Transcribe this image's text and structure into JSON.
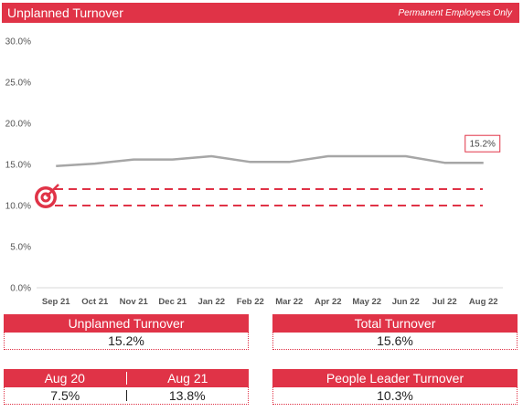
{
  "header": {
    "title": "Unplanned Turnover",
    "subtitle": "Permanent Employees Only"
  },
  "chart_data": {
    "type": "line",
    "title": "Unplanned Turnover",
    "categories": [
      "Sep 21",
      "Oct 21",
      "Nov 21",
      "Dec 21",
      "Jan 22",
      "Feb 22",
      "Mar 22",
      "Apr 22",
      "May 22",
      "Jun 22",
      "Jul 22",
      "Aug 22"
    ],
    "series": [
      {
        "values": [
          14.8,
          15.1,
          15.6,
          15.6,
          16.0,
          15.3,
          15.3,
          16.0,
          16.0,
          16.0,
          15.2,
          15.2
        ],
        "color": "#a6a6a6"
      }
    ],
    "target_lines": [
      {
        "value": 12.0,
        "color": "#e03347",
        "style": "dashed"
      },
      {
        "value": 10.0,
        "color": "#e03347",
        "style": "dashed"
      }
    ],
    "target_icon": "target-icon",
    "callout": {
      "label": "15.2%",
      "category": "Aug 22"
    },
    "ylim": [
      0,
      30
    ],
    "yticks": [
      "0.0%",
      "5.0%",
      "10.0%",
      "15.0%",
      "20.0%",
      "25.0%",
      "30.0%"
    ],
    "ytick_values": [
      0,
      5,
      10,
      15,
      20,
      25,
      30
    ],
    "grid": false,
    "xlabel": "",
    "ylabel": ""
  },
  "cards": {
    "unplanned": {
      "label": "Unplanned Turnover",
      "value": "15.2%"
    },
    "total": {
      "label": "Total Turnover",
      "value": "15.6%"
    },
    "yoy": {
      "label_left": "Aug 20",
      "label_right": "Aug 21",
      "value_left": "7.5%",
      "value_right": "13.8%"
    },
    "people_leader": {
      "label": "People Leader Turnover",
      "value": "10.3%"
    }
  },
  "colors": {
    "accent": "#e03347",
    "line": "#a6a6a6",
    "axis": "#d9d9d9"
  }
}
